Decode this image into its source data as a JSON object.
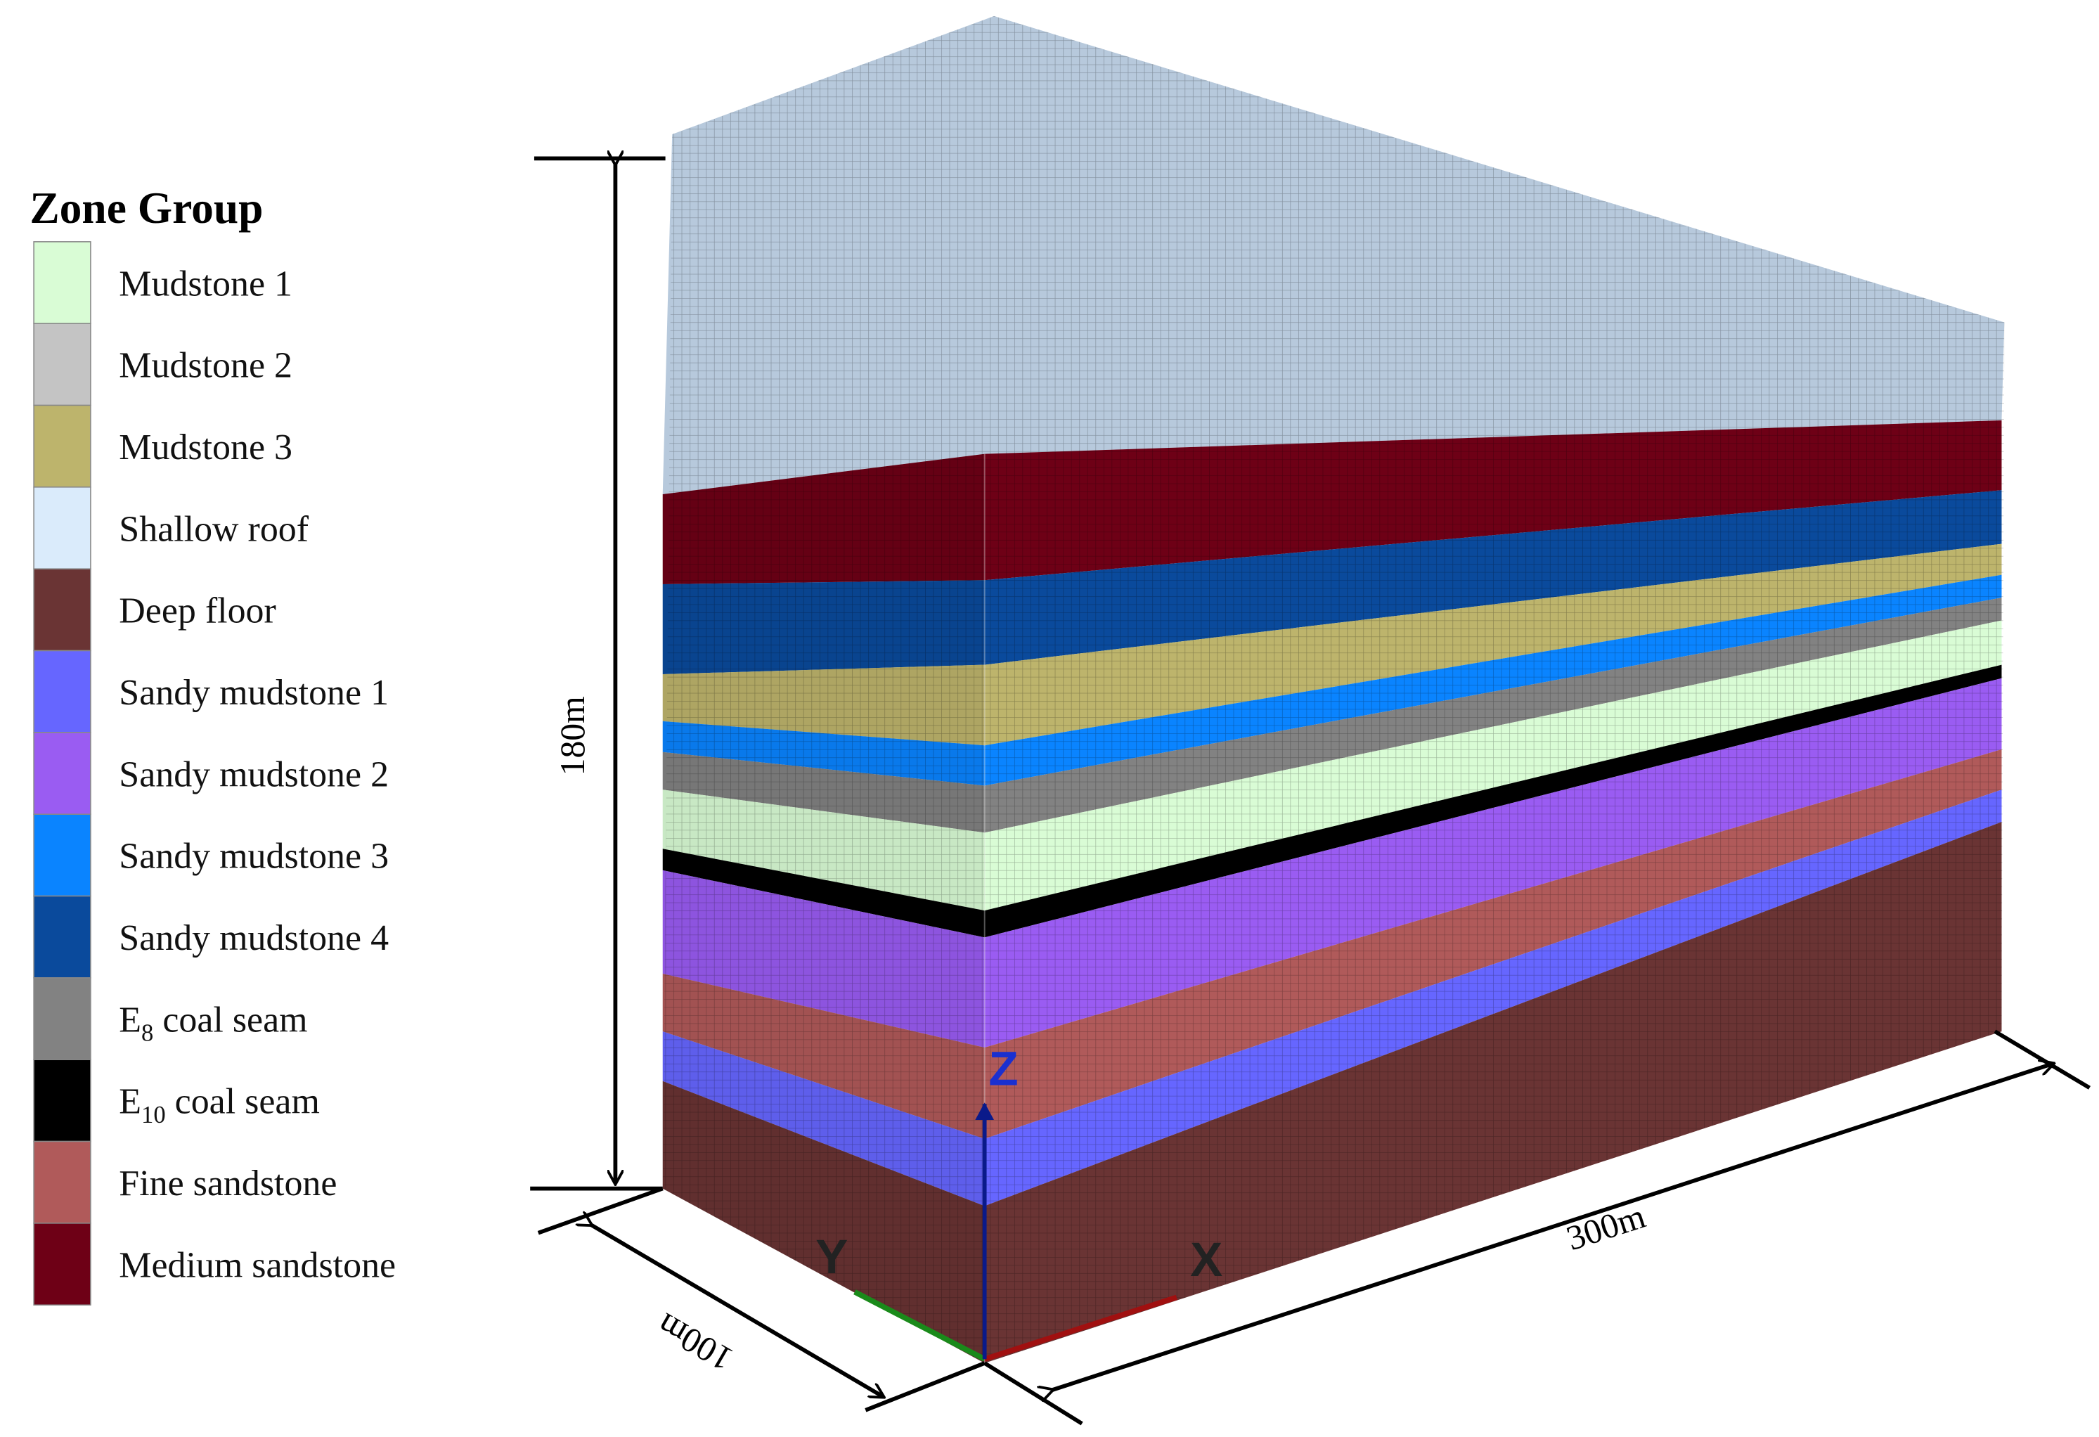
{
  "legend": {
    "title": "Zone Group",
    "items": [
      {
        "label": "Mudstone 1",
        "color": "#d9fcd5"
      },
      {
        "label": "Mudstone 2",
        "color": "#c4c4c4"
      },
      {
        "label": "Mudstone 3",
        "color": "#bdb46c"
      },
      {
        "label": "Shallow roof",
        "color": "#daebfb"
      },
      {
        "label": "Deep floor",
        "color": "#6a3434"
      },
      {
        "label": "Sandy mudstone 1",
        "color": "#6666ff"
      },
      {
        "label": "Sandy mudstone 2",
        "color": "#9a5cf2"
      },
      {
        "label": "Sandy mudstone 3",
        "color": "#0a84ff"
      },
      {
        "label": "Sandy mudstone 4",
        "color": "#0a4a9c"
      },
      {
        "label": "E",
        "subscript": "8",
        "suffix": " coal seam",
        "color": "#828282"
      },
      {
        "label": "E",
        "subscript": "10",
        "suffix": " coal seam",
        "color": "#000000"
      },
      {
        "label": "Fine sandstone",
        "color": "#b05a5a"
      },
      {
        "label": "Medium sandstone",
        "color": "#6e0016"
      }
    ]
  },
  "dimensions": {
    "height": "180m",
    "length": "300m",
    "width": "100m"
  },
  "axes": {
    "z": "Z",
    "y": "Y",
    "x": "X"
  }
}
